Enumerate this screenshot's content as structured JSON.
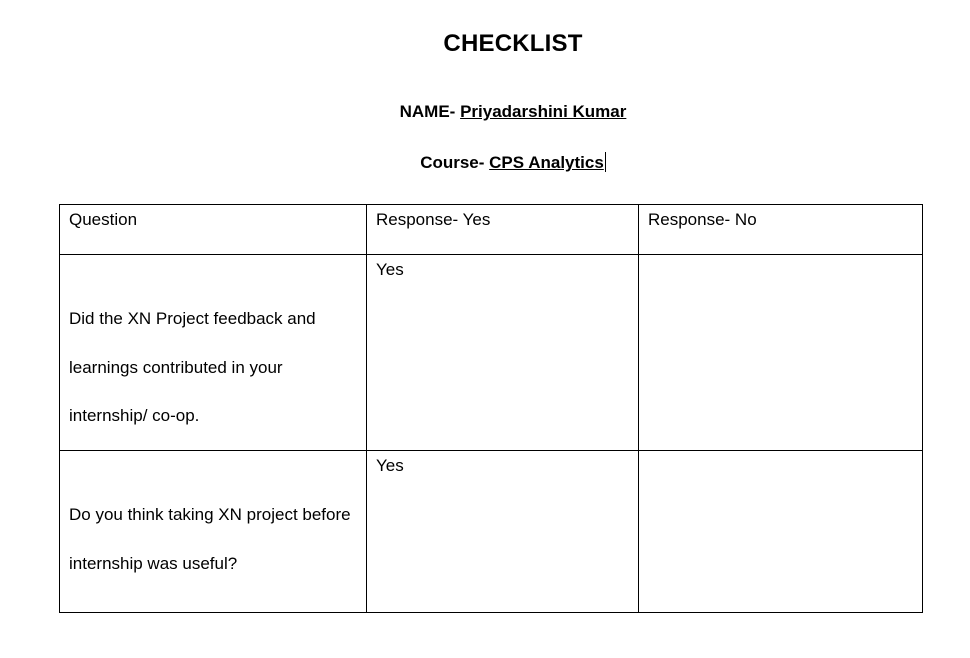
{
  "document": {
    "title": "CHECKLIST",
    "name_label": "NAME- ",
    "name_value": "Priyadarshini Kumar",
    "course_label": "Course- ",
    "course_value": "CPS Analytics"
  },
  "table": {
    "headers": [
      "Question",
      "Response- Yes",
      "Response- No"
    ],
    "rows": [
      {
        "question": "Did the XN Project feedback and learnings contributed in your internship/ co-op.",
        "yes": "Yes",
        "no": ""
      },
      {
        "question": "Do you think taking XN project before internship was useful?",
        "yes": "Yes",
        "no": ""
      }
    ]
  }
}
